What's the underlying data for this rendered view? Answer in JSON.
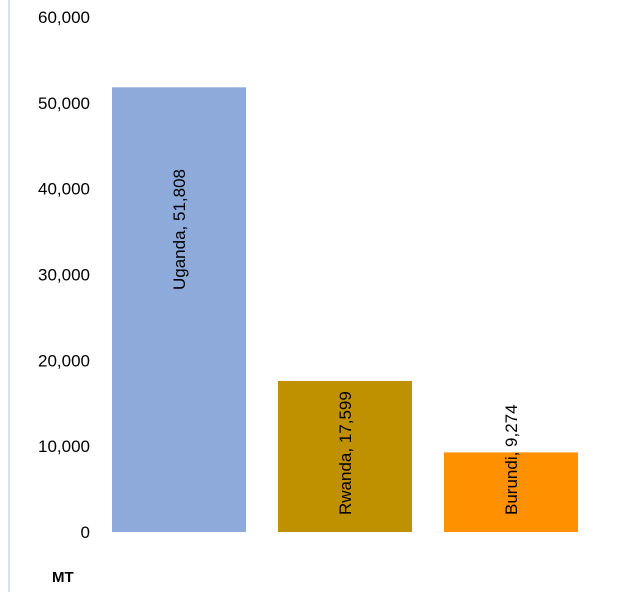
{
  "chart_data": {
    "type": "bar",
    "title": "",
    "xlabel": "",
    "ylabel": "MT",
    "ylim": [
      0,
      60000
    ],
    "yticks": [
      "0",
      "10,000",
      "20,000",
      "30,000",
      "40,000",
      "50,000",
      "60,000"
    ],
    "grid": false,
    "legend": "none",
    "categories": [
      "Uganda",
      "Rwanda",
      "Burundi"
    ],
    "values": [
      51808,
      17599,
      9274
    ],
    "data_labels": [
      "Uganda,  51,808",
      "Rwanda,  17,599",
      "Burundi,  9,274"
    ],
    "colors": [
      "#8eaadb",
      "#bf9000",
      "#ff9000"
    ]
  }
}
